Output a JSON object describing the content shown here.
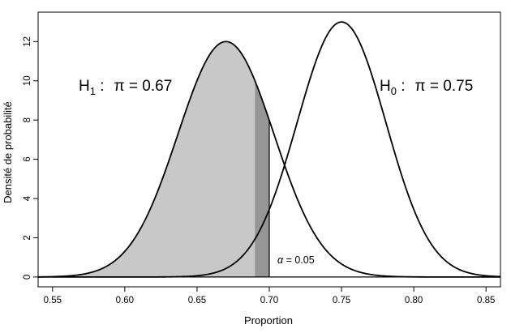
{
  "chart_data": {
    "type": "line",
    "xlabel": "Proportion",
    "ylabel": "Densité de probabilité",
    "xlim": [
      0.54,
      0.86
    ],
    "ylim": [
      -0.5,
      13.5
    ],
    "x_ticks": [
      0.55,
      0.6,
      0.65,
      0.7,
      0.75,
      0.8,
      0.85
    ],
    "x_tick_labels": [
      "0.55",
      "0.60",
      "0.65",
      "0.70",
      "0.75",
      "0.80",
      "0.85"
    ],
    "y_ticks": [
      0,
      2,
      4,
      6,
      8,
      10,
      12
    ],
    "y_tick_labels": [
      "0",
      "2",
      "4",
      "6",
      "8",
      "10",
      "12"
    ],
    "series": [
      {
        "name": "H1",
        "kind": "normal-density",
        "mean": 0.67,
        "peak": 12.0,
        "color": "#000000"
      },
      {
        "name": "H0",
        "kind": "normal-density",
        "mean": 0.75,
        "peak": 13.0,
        "color": "#000000"
      }
    ],
    "shaded_regions": [
      {
        "under": "H1",
        "from": 0.54,
        "to": 0.69,
        "color": "#c8c8c8"
      },
      {
        "under": "H1",
        "from": 0.69,
        "to": 0.7,
        "color": "#969696"
      }
    ],
    "vertical_line": {
      "x": 0.7,
      "color": "#000000"
    },
    "annotations": {
      "h1_prefix": "H",
      "h1_sub": "1",
      "h1_colon": " :",
      "h1_pi": "π",
      "h1_eq": " = 0.67",
      "h0_prefix": "H",
      "h0_sub": "0",
      "h0_colon": " :",
      "h0_pi": "π",
      "h0_eq": " = 0.75",
      "alpha_symbol": "α",
      "alpha_eq": " = 0.05"
    },
    "grid": false,
    "legend": "none"
  }
}
